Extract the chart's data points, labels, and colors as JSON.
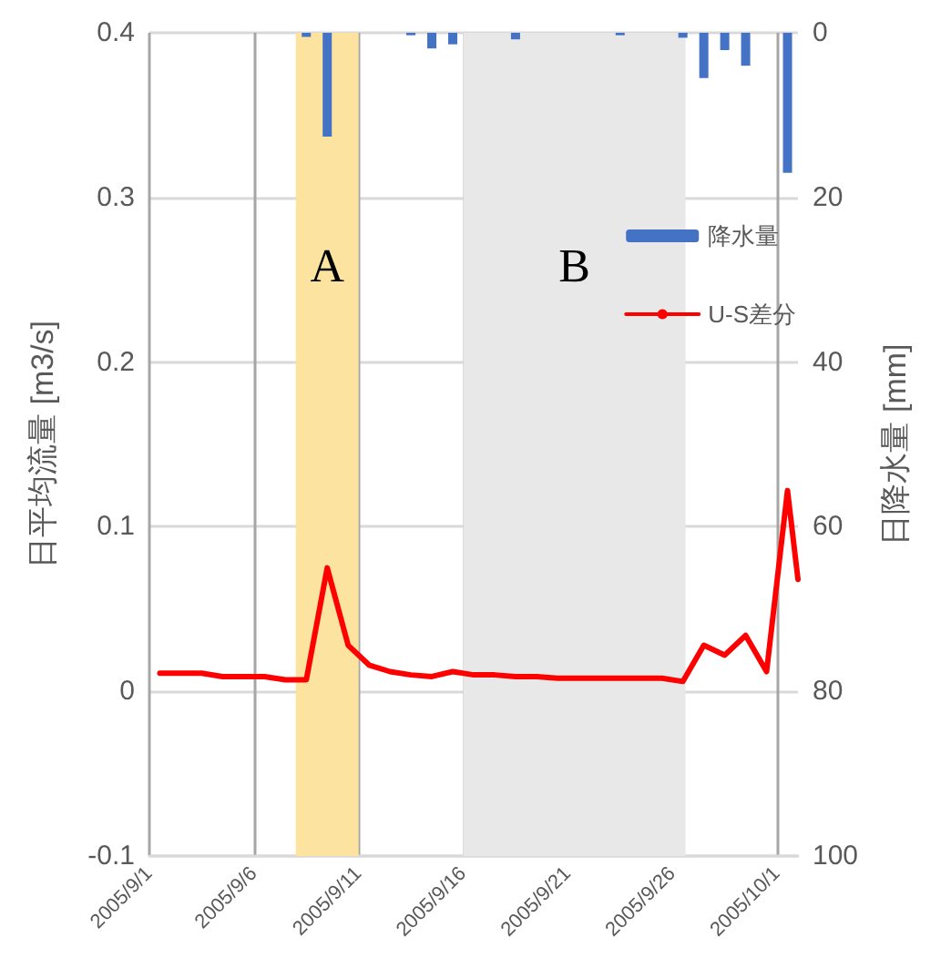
{
  "chart_data": {
    "type": "line",
    "ylabel": "日平均流量 [m3/s]",
    "y2label": "日降水量 [mm]",
    "xlim": [
      "2005-09-01",
      "2005-10-02"
    ],
    "xticks": [
      {
        "value": "2005-09-01",
        "label": "2005/9/1"
      },
      {
        "value": "2005-09-06",
        "label": "2005/9/6"
      },
      {
        "value": "2005-09-11",
        "label": "2005/9/11"
      },
      {
        "value": "2005-09-16",
        "label": "2005/9/16"
      },
      {
        "value": "2005-09-21",
        "label": "2005/9/21"
      },
      {
        "value": "2005-09-26",
        "label": "2005/9/26"
      },
      {
        "value": "2005-10-01",
        "label": "2005/10/1"
      }
    ],
    "ylim": [
      -0.1,
      0.4
    ],
    "yticks": [
      -0.1,
      0,
      0.1,
      0.2,
      0.3,
      0.4
    ],
    "y2lim": [
      100,
      0
    ],
    "y2ticks": [
      0,
      20,
      40,
      60,
      80,
      100
    ],
    "series": [
      {
        "name": "降水量",
        "type": "bar",
        "axis": "y2",
        "color": "#4472c4",
        "x": [
          "2005-09-08T12:00",
          "2005-09-09T12:00",
          "2005-09-13T12:00",
          "2005-09-14T12:00",
          "2005-09-15T12:00",
          "2005-09-18T12:00",
          "2005-09-23T12:00",
          "2005-09-26T12:00",
          "2005-09-27T12:00",
          "2005-09-28T12:00",
          "2005-09-29T12:00",
          "2005-10-01T12:00"
        ],
        "values": [
          0.5,
          12.6,
          0.3,
          1.9,
          1.4,
          0.8,
          0.3,
          0.6,
          5.5,
          2.1,
          4.0,
          17.0
        ]
      },
      {
        "name": "U-S差分",
        "color": "#ff0000",
        "x": [
          "2005-09-01T12:00",
          "2005-09-02T12:00",
          "2005-09-03T12:00",
          "2005-09-04T12:00",
          "2005-09-05T12:00",
          "2005-09-06T12:00",
          "2005-09-07T12:00",
          "2005-09-08T12:00",
          "2005-09-09T12:00",
          "2005-09-10T12:00",
          "2005-09-11T12:00",
          "2005-09-12T12:00",
          "2005-09-13T12:00",
          "2005-09-14T12:00",
          "2005-09-15T12:00",
          "2005-09-16T12:00",
          "2005-09-17T12:00",
          "2005-09-18T12:00",
          "2005-09-19T12:00",
          "2005-09-20T12:00",
          "2005-09-21T12:00",
          "2005-09-22T12:00",
          "2005-09-23T12:00",
          "2005-09-24T12:00",
          "2005-09-25T12:00",
          "2005-09-26T12:00",
          "2005-09-27T12:00",
          "2005-09-28T12:00",
          "2005-09-29T12:00",
          "2005-09-30T12:00",
          "2005-10-01T12:00",
          "2005-10-02"
        ],
        "values": [
          0.011,
          0.011,
          0.011,
          0.009,
          0.009,
          0.009,
          0.007,
          0.007,
          0.075,
          0.028,
          0.016,
          0.012,
          0.01,
          0.009,
          0.012,
          0.01,
          0.01,
          0.009,
          0.009,
          0.008,
          0.008,
          0.008,
          0.008,
          0.008,
          0.008,
          0.006,
          0.028,
          0.022,
          0.034,
          0.012,
          0.122,
          0.068
        ]
      }
    ],
    "bands": [
      {
        "axis": "x",
        "from": "2005-09-08",
        "to": "2005-09-11",
        "label": "A",
        "color": "#fce4a0"
      },
      {
        "axis": "x",
        "from": "2005-09-16",
        "to": "2005-09-26T15:00",
        "label": "B",
        "color": "#e8e8e8"
      }
    ],
    "grid": true,
    "legend": "right",
    "marker": "none",
    "line_style": "solid"
  }
}
